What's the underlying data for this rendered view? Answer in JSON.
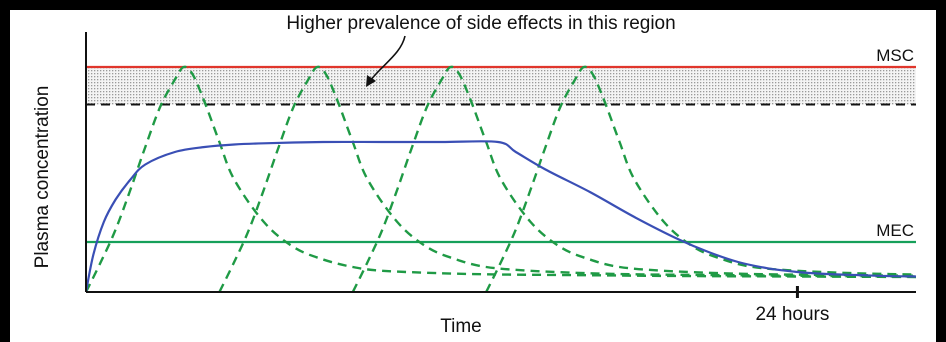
{
  "chart_data": {
    "type": "line",
    "title": "",
    "annotation": "Higher prevalence of side effects in this region",
    "xlabel": "Time",
    "ylabel": "Plasma concentration",
    "x_ticks": [
      {
        "x": 24,
        "label": "24 hours"
      }
    ],
    "xlim": [
      0,
      28
    ],
    "ylim": [
      0,
      100
    ],
    "grid": false,
    "thresholds": [
      {
        "name": "MSC",
        "y": 90,
        "color": "#e0362c"
      },
      {
        "name": "MEC",
        "y": 20,
        "color": "#16a05a"
      }
    ],
    "side_effect_region": {
      "y_from": 75,
      "y_to": 90,
      "dashed_lower_boundary": true
    },
    "series": [
      {
        "name": "",
        "style": "solid",
        "color": "#3a4fb5",
        "x": [
          0,
          0.25,
          0.6,
          1,
          1.5,
          2,
          3,
          4,
          5,
          6,
          8,
          10,
          12,
          13.9,
          14.5,
          15.5,
          17,
          18.5,
          20,
          21,
          22,
          23,
          24,
          25,
          26,
          27,
          28
        ],
        "y": [
          0,
          15,
          28,
          37,
          45,
          51,
          56,
          58,
          59,
          59.5,
          60,
          60,
          60,
          60,
          56,
          49,
          40,
          30,
          21,
          16,
          12,
          9.5,
          8,
          7.2,
          6.8,
          6.4,
          6.2
        ]
      },
      {
        "name": "",
        "style": "dashed",
        "color": "#1f9a45",
        "cycles": [
          {
            "x": [
              0,
              0.5,
              1,
              1.5,
              2,
              2.5,
              3,
              3.3,
              3.6,
              4,
              4.5,
              5,
              6,
              7,
              8,
              9,
              10,
              12,
              14,
              16,
              18,
              20,
              22,
              24,
              26,
              28
            ],
            "y": [
              0,
              12,
              25,
              41,
              58,
              74,
              85,
              90,
              87,
              76,
              60,
              45,
              28,
              18,
              13,
              10,
              8.5,
              7.5,
              7,
              6.8,
              6.6,
              6.4,
              6.3,
              6.2,
              6.1,
              6
            ]
          },
          {
            "x": [
              4.5,
              5,
              5.5,
              6,
              6.5,
              7,
              7.5,
              7.8,
              8.1,
              8.5,
              9,
              9.5,
              10.5,
              11.5,
              12.5,
              13.5,
              15,
              17,
              19,
              21,
              23,
              25,
              28
            ],
            "y": [
              0,
              12,
              25,
              41,
              58,
              74,
              85,
              90,
              87,
              76,
              60,
              45,
              28,
              18,
              13,
              10,
              8.5,
              7.5,
              7,
              6.8,
              6.6,
              6.4,
              6.2
            ]
          },
          {
            "x": [
              9,
              9.5,
              10,
              10.5,
              11,
              11.5,
              12,
              12.3,
              12.6,
              13,
              13.5,
              14,
              15,
              16,
              17,
              18,
              19.5,
              21.5,
              23.5,
              25.5,
              28
            ],
            "y": [
              0,
              12,
              25,
              41,
              58,
              74,
              85,
              90,
              87,
              76,
              60,
              45,
              28,
              18,
              13,
              10,
              8.5,
              7.5,
              7,
              6.8,
              6.5
            ]
          },
          {
            "x": [
              13.5,
              14,
              14.5,
              15,
              15.5,
              16,
              16.5,
              16.8,
              17.1,
              17.5,
              18,
              18.5,
              19.5,
              20.5,
              21.5,
              22.5,
              24,
              26,
              28
            ],
            "y": [
              0,
              12,
              25,
              41,
              58,
              74,
              85,
              90,
              87,
              76,
              60,
              45,
              28,
              18,
              13,
              10,
              8.5,
              7.5,
              7
            ]
          }
        ]
      }
    ]
  }
}
